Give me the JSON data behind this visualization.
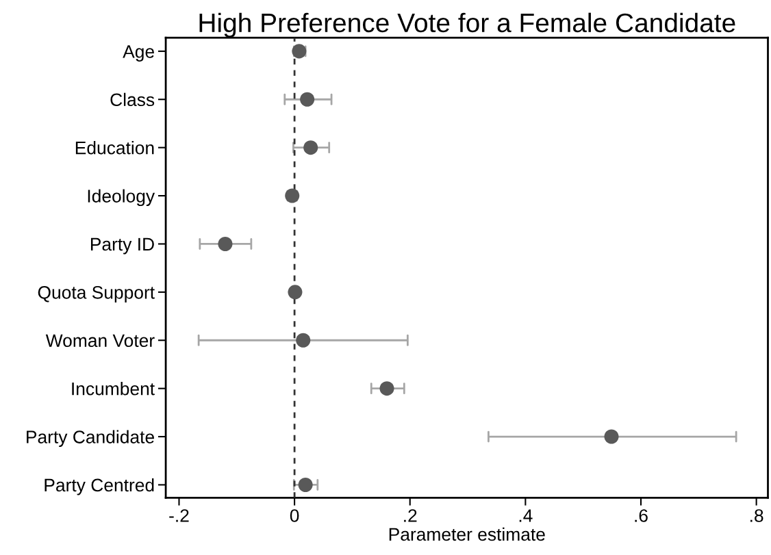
{
  "chart_data": {
    "type": "scatter",
    "title": "High Preference Vote for a Female Candidate",
    "xlabel": "Parameter estimate",
    "orientation": "horizontal",
    "categories": [
      "Age",
      "Class",
      "Education",
      "Ideology",
      "Party ID",
      "Quota Support",
      "Woman Voter",
      "Incumbent",
      "Party Candidate",
      "Party Centred"
    ],
    "series": [
      {
        "color": "#595959",
        "values": [
          0.008,
          0.022,
          0.028,
          -0.004,
          -0.12,
          0.001,
          0.015,
          0.16,
          0.549,
          0.019
        ],
        "errors": [
          [
            -0.001,
            0.019
          ],
          [
            -0.017,
            0.064
          ],
          [
            -0.002,
            0.06
          ],
          [
            -0.012,
            0.004
          ],
          [
            -0.164,
            -0.075
          ],
          null,
          [
            -0.166,
            0.196
          ],
          [
            0.133,
            0.19
          ],
          [
            0.336,
            0.765
          ],
          [
            -0.001,
            0.04
          ]
        ]
      }
    ],
    "xlim": [
      -0.223,
      0.82
    ],
    "xticks": [
      {
        "value": -0.2,
        "label": "-.2"
      },
      0,
      {
        "value": 0.2,
        "label": ".2"
      },
      {
        "value": 0.4,
        "label": ".4"
      },
      {
        "value": 0.6,
        "label": ".6"
      },
      {
        "value": 0.8,
        "label": ".8"
      }
    ],
    "ref_lines": [
      {
        "axis": "x",
        "value": 0,
        "color": "#333333",
        "line_style": "dashed"
      }
    ],
    "marker": "circle",
    "grid": false,
    "legend": false
  }
}
